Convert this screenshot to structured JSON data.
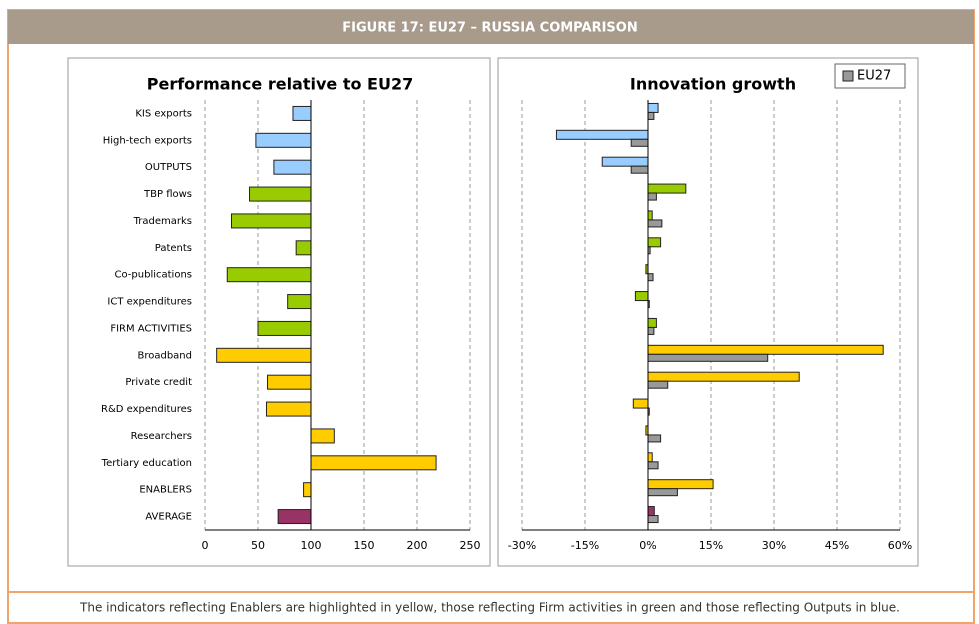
{
  "figure_title": "FIGURE 17: EU27 – RUSSIA COMPARISON",
  "caption": "The indicators reflecting Enablers are highlighted in yellow, those reflecting Firm activities in green and those reflecting Outputs in blue.",
  "chart_data": [
    {
      "type": "bar",
      "orientation": "horizontal",
      "title": "Performance relative to EU27",
      "categories": [
        "KIS exports",
        "High-tech exports",
        "OUTPUTS",
        "TBP flows",
        "Trademarks",
        "Patents",
        "Co-publications",
        "ICT expenditures",
        "FIRM ACTIVITIES",
        "Broadband",
        "Private credit",
        "R&D expenditures",
        "Researchers",
        "Tertiary education",
        "ENABLERS",
        "AVERAGE"
      ],
      "values": [
        83,
        48,
        65,
        42,
        25,
        86,
        21,
        78,
        50,
        11,
        59,
        58,
        122,
        218,
        93,
        69
      ],
      "colors": [
        "#99ccff",
        "#99ccff",
        "#99ccff",
        "#99cc00",
        "#99cc00",
        "#99cc00",
        "#99cc00",
        "#99cc00",
        "#99cc00",
        "#ffcc00",
        "#ffcc00",
        "#ffcc00",
        "#ffcc00",
        "#ffcc00",
        "#ffcc00",
        "#993366"
      ],
      "baseline": 100,
      "xlim": [
        0,
        250
      ],
      "xticks": [
        0,
        50,
        100,
        150,
        200,
        250
      ],
      "grid": true
    },
    {
      "type": "bar",
      "orientation": "horizontal",
      "title": "Innovation growth",
      "series": [
        {
          "colors": [
            "#99ccff",
            "#99ccff",
            "#99ccff",
            "#99cc00",
            "#99cc00",
            "#99cc00",
            "#99cc00",
            "#99cc00",
            "#99cc00",
            "#ffcc00",
            "#ffcc00",
            "#ffcc00",
            "#ffcc00",
            "#ffcc00",
            "#ffcc00",
            "#993366"
          ],
          "values": [
            2.4,
            -21.8,
            -10.9,
            9,
            1,
            3,
            -0.5,
            -3,
            2,
            56,
            36,
            -3.5,
            -0.5,
            1,
            15.5,
            1.5
          ]
        },
        {
          "name": "EU27",
          "color": "#999999",
          "values": [
            1.4,
            -4,
            -4,
            2,
            3.3,
            0.5,
            1.2,
            0.3,
            1.4,
            28.5,
            4.7,
            0.3,
            3,
            2.4,
            7,
            2.4
          ]
        }
      ],
      "baseline": 0,
      "xlim": [
        -30,
        60
      ],
      "xticks": [
        {
          "value": -30,
          "label": "-30%"
        },
        {
          "value": -15,
          "label": "-15%"
        },
        {
          "value": 0,
          "label": "0%"
        },
        {
          "value": 15,
          "label": "15%"
        },
        {
          "value": 30,
          "label": "30%"
        },
        {
          "value": 45,
          "label": "45%"
        },
        {
          "value": 60,
          "label": "60%"
        }
      ],
      "grid": true,
      "legend": "upper right"
    }
  ]
}
